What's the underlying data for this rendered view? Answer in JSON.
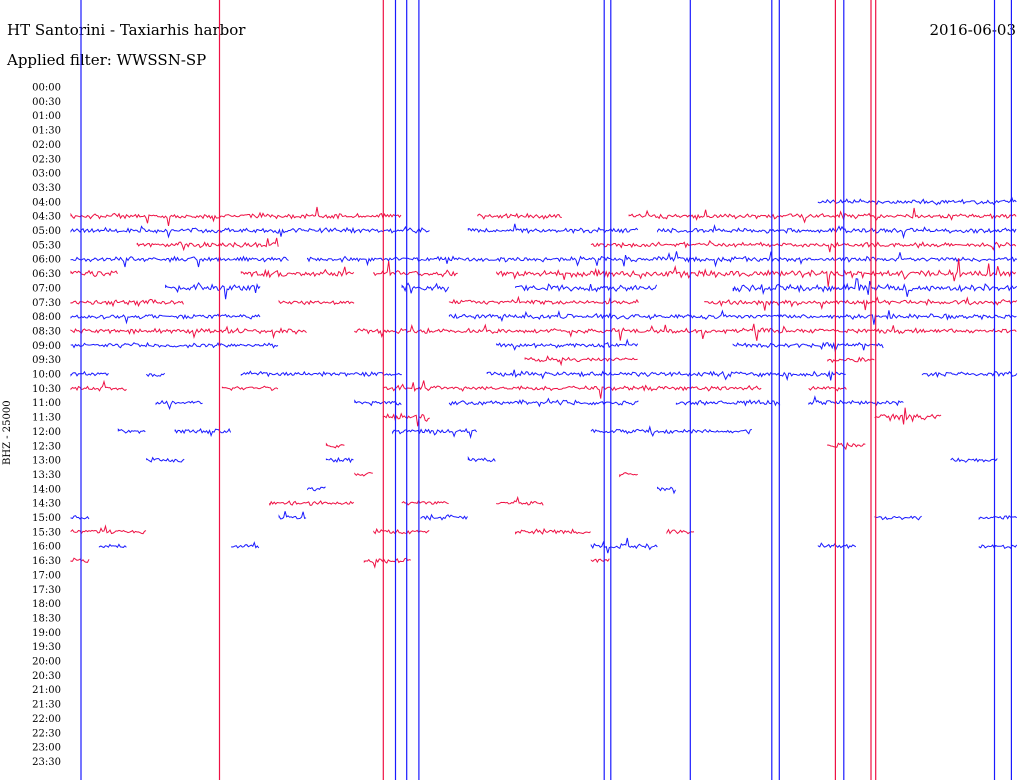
{
  "header": {
    "title": "HT Santorini - Taxiarhis harbor",
    "date": "2016-06-03",
    "filter": "Applied filter: WWSSN-SP"
  },
  "chart_data": {
    "type": "line",
    "ylabel": "BHZ - 25000",
    "time_labels": [
      "00:00",
      "00:30",
      "01:00",
      "01:30",
      "02:00",
      "02:30",
      "03:00",
      "03:30",
      "04:00",
      "04:30",
      "05:00",
      "05:30",
      "06:00",
      "06:30",
      "07:00",
      "07:30",
      "08:00",
      "08:30",
      "09:00",
      "09:30",
      "10:00",
      "10:30",
      "11:00",
      "11:30",
      "12:00",
      "12:30",
      "13:00",
      "13:30",
      "14:00",
      "14:30",
      "15:00",
      "15:30",
      "16:00",
      "16:30",
      "17:00",
      "17:30",
      "18:00",
      "18:30",
      "19:00",
      "19:30",
      "20:00",
      "20:30",
      "21:00",
      "21:30",
      "22:00",
      "22:30",
      "23:00",
      "23:30"
    ],
    "trace_colors": [
      "#1a1aff",
      "#ee1144"
    ],
    "trace_minutes": 30,
    "active_traces": [
      {
        "row": 8,
        "segments": [
          [
            0.79,
            1.0
          ]
        ],
        "amp": 2
      },
      {
        "row": 9,
        "segments": [
          [
            0.0,
            0.35
          ],
          [
            0.43,
            0.52
          ],
          [
            0.59,
            1.0
          ]
        ],
        "amp": 2
      },
      {
        "row": 10,
        "segments": [
          [
            0.0,
            0.38
          ],
          [
            0.42,
            0.6
          ],
          [
            0.62,
            1.0
          ]
        ],
        "amp": 2
      },
      {
        "row": 11,
        "segments": [
          [
            0.07,
            0.22
          ],
          [
            0.55,
            1.0
          ]
        ],
        "amp": 2
      },
      {
        "row": 12,
        "segments": [
          [
            0.0,
            0.23
          ],
          [
            0.25,
            1.0
          ]
        ],
        "amp": 2
      },
      {
        "row": 13,
        "segments": [
          [
            0.0,
            0.05
          ],
          [
            0.18,
            0.3
          ],
          [
            0.32,
            0.41
          ],
          [
            0.45,
            1.0
          ]
        ],
        "amp": 3
      },
      {
        "row": 14,
        "segments": [
          [
            0.1,
            0.2
          ],
          [
            0.35,
            0.4
          ],
          [
            0.47,
            0.62
          ],
          [
            0.7,
            1.0
          ]
        ],
        "amp": 3
      },
      {
        "row": 15,
        "segments": [
          [
            0.0,
            0.12
          ],
          [
            0.22,
            0.3
          ],
          [
            0.4,
            0.6
          ],
          [
            0.67,
            1.0
          ]
        ],
        "amp": 2
      },
      {
        "row": 16,
        "segments": [
          [
            0.0,
            0.2
          ],
          [
            0.4,
            1.0
          ]
        ],
        "amp": 2
      },
      {
        "row": 17,
        "segments": [
          [
            0.0,
            0.25
          ],
          [
            0.3,
            1.0
          ]
        ],
        "amp": 2
      },
      {
        "row": 18,
        "segments": [
          [
            0.0,
            0.22
          ],
          [
            0.45,
            0.6
          ],
          [
            0.7,
            0.86
          ]
        ],
        "amp": 2
      },
      {
        "row": 19,
        "segments": [
          [
            0.48,
            0.6
          ],
          [
            0.8,
            0.85
          ]
        ],
        "amp": 2
      },
      {
        "row": 20,
        "segments": [
          [
            0.0,
            0.04
          ],
          [
            0.08,
            0.1
          ],
          [
            0.18,
            0.35
          ],
          [
            0.44,
            0.82
          ],
          [
            0.9,
            1.0
          ]
        ],
        "amp": 2
      },
      {
        "row": 21,
        "segments": [
          [
            0.0,
            0.06
          ],
          [
            0.16,
            0.22
          ],
          [
            0.33,
            0.73
          ],
          [
            0.78,
            0.82
          ]
        ],
        "amp": 2
      },
      {
        "row": 22,
        "segments": [
          [
            0.09,
            0.14
          ],
          [
            0.3,
            0.35
          ],
          [
            0.4,
            0.6
          ],
          [
            0.64,
            0.75
          ],
          [
            0.78,
            0.88
          ]
        ],
        "amp": 2
      },
      {
        "row": 23,
        "segments": [
          [
            0.33,
            0.38
          ],
          [
            0.85,
            0.92
          ]
        ],
        "amp": 3
      },
      {
        "row": 24,
        "segments": [
          [
            0.05,
            0.08
          ],
          [
            0.11,
            0.17
          ],
          [
            0.34,
            0.43
          ],
          [
            0.55,
            0.72
          ]
        ],
        "amp": 2
      },
      {
        "row": 25,
        "segments": [
          [
            0.27,
            0.29
          ],
          [
            0.8,
            0.84
          ]
        ],
        "amp": 2
      },
      {
        "row": 26,
        "segments": [
          [
            0.08,
            0.12
          ],
          [
            0.27,
            0.3
          ],
          [
            0.42,
            0.45
          ],
          [
            0.93,
            0.98
          ]
        ],
        "amp": 2
      },
      {
        "row": 27,
        "segments": [
          [
            0.3,
            0.32
          ],
          [
            0.58,
            0.6
          ]
        ],
        "amp": 2
      },
      {
        "row": 28,
        "segments": [
          [
            0.25,
            0.27
          ],
          [
            0.62,
            0.64
          ]
        ],
        "amp": 2
      },
      {
        "row": 29,
        "segments": [
          [
            0.21,
            0.3
          ],
          [
            0.35,
            0.4
          ],
          [
            0.45,
            0.5
          ]
        ],
        "amp": 2
      },
      {
        "row": 30,
        "segments": [
          [
            0.0,
            0.02
          ],
          [
            0.22,
            0.25
          ],
          [
            0.37,
            0.42
          ],
          [
            0.85,
            0.9
          ],
          [
            0.96,
            1.0
          ]
        ],
        "amp": 2
      },
      {
        "row": 31,
        "segments": [
          [
            0.0,
            0.08
          ],
          [
            0.32,
            0.38
          ],
          [
            0.47,
            0.55
          ],
          [
            0.63,
            0.66
          ]
        ],
        "amp": 2
      },
      {
        "row": 32,
        "segments": [
          [
            0.03,
            0.06
          ],
          [
            0.17,
            0.2
          ],
          [
            0.55,
            0.62
          ],
          [
            0.79,
            0.83
          ],
          [
            0.96,
            1.0
          ]
        ],
        "amp": 2
      },
      {
        "row": 33,
        "segments": [
          [
            0.0,
            0.02
          ],
          [
            0.31,
            0.36
          ],
          [
            0.55,
            0.57
          ]
        ],
        "amp": 2
      }
    ],
    "vertical_lines": [
      {
        "x": 0.0,
        "color": "#1a1aff"
      },
      {
        "x": 0.148,
        "color": "#ee1144"
      },
      {
        "x": 0.323,
        "color": "#ee1144"
      },
      {
        "x": 0.336,
        "color": "#1a1aff"
      },
      {
        "x": 0.348,
        "color": "#1a1aff"
      },
      {
        "x": 0.361,
        "color": "#1a1aff"
      },
      {
        "x": 0.559,
        "color": "#1a1aff"
      },
      {
        "x": 0.566,
        "color": "#1a1aff"
      },
      {
        "x": 0.651,
        "color": "#1a1aff"
      },
      {
        "x": 0.738,
        "color": "#1a1aff"
      },
      {
        "x": 0.746,
        "color": "#1a1aff"
      },
      {
        "x": 0.806,
        "color": "#ee1144"
      },
      {
        "x": 0.815,
        "color": "#1a1aff"
      },
      {
        "x": 0.844,
        "color": "#ee1144"
      },
      {
        "x": 0.849,
        "color": "#ee1144"
      },
      {
        "x": 0.976,
        "color": "#1a1aff"
      },
      {
        "x": 0.994,
        "color": "#1a1aff"
      }
    ]
  }
}
